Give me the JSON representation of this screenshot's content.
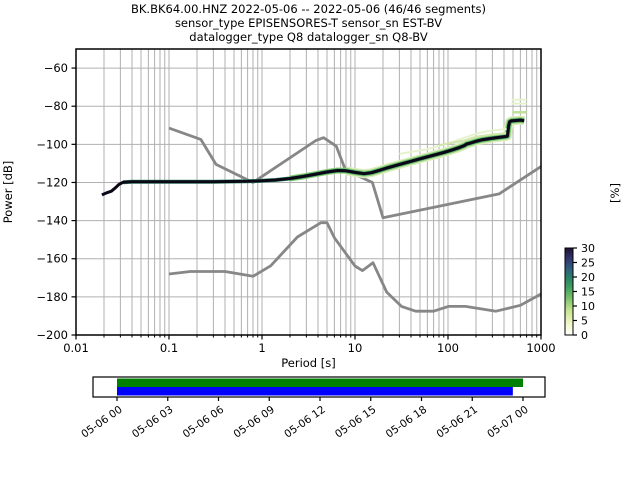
{
  "title": {
    "line1": "BK.BK64.00.HNZ   2022-05-06 -- 2022-05-06  (46/46 segments)",
    "line2": "sensor_type EPISENSORES-T sensor_sn EST-BV",
    "line3": "datalogger_type Q8 datalogger_sn Q8-BV"
  },
  "chart_data": {
    "type": "line",
    "title": "BK.BK64.00.HNZ 2022-05-06 -- 2022-05-06 (46/46 segments)",
    "xlabel": "Period [s]",
    "ylabel": "Power [dB]",
    "ylabel_right": "[%]",
    "xscale": "log",
    "xlim": [
      0.01,
      1000
    ],
    "ylim": [
      -200,
      -50
    ],
    "grid": "both",
    "grid_color": "#b0b0b0",
    "x_ticks": [
      {
        "v": 0.01,
        "label": "0.01"
      },
      {
        "v": 0.1,
        "label": "0.1"
      },
      {
        "v": 1,
        "label": "1"
      },
      {
        "v": 10,
        "label": "10"
      },
      {
        "v": 100,
        "label": "100"
      },
      {
        "v": 1000,
        "label": "1000"
      }
    ],
    "y_ticks": [
      {
        "v": -60,
        "label": "−60"
      },
      {
        "v": -80,
        "label": "−80"
      },
      {
        "v": -100,
        "label": "−100"
      },
      {
        "v": -120,
        "label": "−120"
      },
      {
        "v": -140,
        "label": "−140"
      },
      {
        "v": -160,
        "label": "−160"
      },
      {
        "v": -180,
        "label": "−180"
      },
      {
        "v": -200,
        "label": "−200"
      }
    ],
    "series": [
      {
        "name": "noise-model-low-NLNM",
        "color": "#878787",
        "width": 2.8,
        "points": [
          [
            0.1,
            -168.0
          ],
          [
            0.17,
            -166.7
          ],
          [
            0.4,
            -166.7
          ],
          [
            0.8,
            -169.2
          ],
          [
            1.24,
            -163.7
          ],
          [
            2.4,
            -148.6
          ],
          [
            4.3,
            -141.1
          ],
          [
            5.0,
            -141.1
          ],
          [
            6.0,
            -149.0
          ],
          [
            10.0,
            -163.8
          ],
          [
            12.0,
            -166.2
          ],
          [
            15.6,
            -162.1
          ],
          [
            21.9,
            -177.5
          ],
          [
            31.6,
            -185.0
          ],
          [
            45.0,
            -187.5
          ],
          [
            70.0,
            -187.5
          ],
          [
            101.0,
            -185.0
          ],
          [
            154.0,
            -185.0
          ],
          [
            328.0,
            -187.5
          ],
          [
            600.0,
            -184.4
          ],
          [
            1000.0,
            -178.5
          ]
        ]
      },
      {
        "name": "noise-model-high-NHNM",
        "color": "#878787",
        "width": 2.8,
        "points": [
          [
            0.1,
            -91.5
          ],
          [
            0.22,
            -97.4
          ],
          [
            0.32,
            -110.5
          ],
          [
            0.8,
            -120.0
          ],
          [
            3.8,
            -98.0
          ],
          [
            4.6,
            -96.5
          ],
          [
            6.3,
            -101.0
          ],
          [
            7.9,
            -113.5
          ],
          [
            15.4,
            -120.0
          ],
          [
            20.0,
            -138.5
          ],
          [
            354.8,
            -126.0
          ],
          [
            1000.0,
            -111.7
          ]
        ]
      },
      {
        "name": "ppsd-mode",
        "color": "#0b0716",
        "width": 3,
        "points": [
          [
            0.019,
            -126.5
          ],
          [
            0.021,
            -125.6
          ],
          [
            0.024,
            -124.6
          ],
          [
            0.0265,
            -122.8
          ],
          [
            0.029,
            -121.0
          ],
          [
            0.032,
            -119.9
          ],
          [
            0.04,
            -119.6
          ],
          [
            0.1,
            -119.6
          ],
          [
            0.3,
            -119.6
          ],
          [
            0.7,
            -119.4
          ],
          [
            1.0,
            -119.1
          ],
          [
            1.4,
            -118.7
          ],
          [
            2.0,
            -117.9
          ],
          [
            2.8,
            -116.8
          ],
          [
            3.8,
            -115.6
          ],
          [
            5.0,
            -114.5
          ],
          [
            6.5,
            -113.7
          ],
          [
            8.0,
            -113.9
          ],
          [
            10.0,
            -114.7
          ],
          [
            12.5,
            -115.4
          ],
          [
            15.0,
            -114.9
          ],
          [
            18.0,
            -113.8
          ],
          [
            22.0,
            -112.4
          ],
          [
            27.0,
            -111.2
          ],
          [
            33.0,
            -110.0
          ],
          [
            40.0,
            -108.9
          ],
          [
            50.0,
            -107.6
          ],
          [
            62.0,
            -106.4
          ],
          [
            75.0,
            -105.3
          ],
          [
            90.0,
            -104.3
          ],
          [
            110.0,
            -103.0
          ],
          [
            130.0,
            -101.8
          ],
          [
            150.0,
            -100.6
          ],
          [
            158.0,
            -99.9
          ],
          [
            175.0,
            -99.3
          ],
          [
            200.0,
            -98.4
          ],
          [
            230.0,
            -97.7
          ],
          [
            265.0,
            -97.2
          ],
          [
            300.0,
            -96.8
          ],
          [
            360.0,
            -96.3
          ],
          [
            420.0,
            -95.9
          ],
          [
            435.0,
            -95.7
          ],
          [
            448.0,
            -90.5
          ],
          [
            460.0,
            -88.2
          ],
          [
            480.0,
            -87.7
          ],
          [
            540.0,
            -87.5
          ],
          [
            600.0,
            -87.3
          ],
          [
            660.0,
            -87.6
          ]
        ]
      }
    ],
    "halos": [
      {
        "name": "ppsd-spread-pale",
        "tmin": 8,
        "tmax": 700,
        "offset": 0,
        "color": "#dcedc0",
        "width": 9
      },
      {
        "name": "ppsd-spread-green",
        "tmin": 2,
        "tmax": 700,
        "offset": 0,
        "color": "#8fcf72",
        "width": 6
      },
      {
        "name": "ppsd-spread-teal",
        "tmin": 0.03,
        "tmax": 700,
        "offset": 0,
        "color": "#35936a",
        "width": 4
      }
    ],
    "extra_lines": [
      {
        "name": "faint-outlier-a",
        "color": "#e7f2cf",
        "width": 2,
        "points": [
          [
            480,
            -76.6
          ],
          [
            700,
            -76.6
          ]
        ]
      },
      {
        "name": "faint-outlier-b",
        "color": "#e7f2cf",
        "width": 2,
        "points": [
          [
            480,
            -78.6
          ],
          [
            700,
            -78.6
          ]
        ]
      },
      {
        "name": "faint-outlier-c",
        "color": "#bfe197",
        "width": 2.5,
        "points": [
          [
            490,
            -83.2
          ],
          [
            700,
            -83.2
          ]
        ]
      },
      {
        "name": "faint-outlier-d",
        "color": "#e7f2cf",
        "width": 2,
        "points": [
          [
            30,
            -105.0
          ],
          [
            60,
            -102.5
          ],
          [
            100,
            -99.5
          ],
          [
            150,
            -96.5
          ],
          [
            200,
            -94.5
          ],
          [
            260,
            -93.2
          ],
          [
            350,
            -92.4
          ],
          [
            430,
            -92.0
          ]
        ]
      },
      {
        "name": "faint-outlier-e",
        "color": "#cfe6ad",
        "width": 2,
        "points": [
          [
            80,
            -100.5
          ],
          [
            150,
            -98.0
          ],
          [
            200,
            -96.0
          ],
          [
            300,
            -94.8
          ],
          [
            430,
            -94.2
          ]
        ]
      }
    ],
    "colorbar": {
      "ticks": [
        {
          "v": 30,
          "label": "30"
        },
        {
          "v": 25,
          "label": "25"
        },
        {
          "v": 20,
          "label": "20"
        },
        {
          "v": 15,
          "label": "15"
        },
        {
          "v": 10,
          "label": "10"
        },
        {
          "v": 5,
          "label": "5"
        },
        {
          "v": 0,
          "label": "0"
        }
      ],
      "vmin": 0,
      "vmax": 30,
      "gradient_stops": [
        [
          0.0,
          "#ffffff"
        ],
        [
          0.12,
          "#f2f8cd"
        ],
        [
          0.28,
          "#c9e593"
        ],
        [
          0.42,
          "#7cc16c"
        ],
        [
          0.55,
          "#3f9f60"
        ],
        [
          0.66,
          "#2b8069"
        ],
        [
          0.77,
          "#2f5b7f"
        ],
        [
          0.88,
          "#32356d"
        ],
        [
          1.0,
          "#1e1233"
        ]
      ]
    }
  },
  "coverage": {
    "labels": [
      "05-06 00",
      "05-06 03",
      "05-06 06",
      "05-06 09",
      "05-06 12",
      "05-06 15",
      "05-06 18",
      "05-06 21",
      "05-07 00"
    ],
    "hours_total": 24,
    "bars": [
      {
        "name": "coverage-bar-data",
        "color": "#008000",
        "start_hour": 0,
        "end_hour": 24.0
      },
      {
        "name": "coverage-bar-used",
        "color": "#0000ff",
        "start_hour": 0,
        "end_hour": 23.4
      }
    ]
  }
}
